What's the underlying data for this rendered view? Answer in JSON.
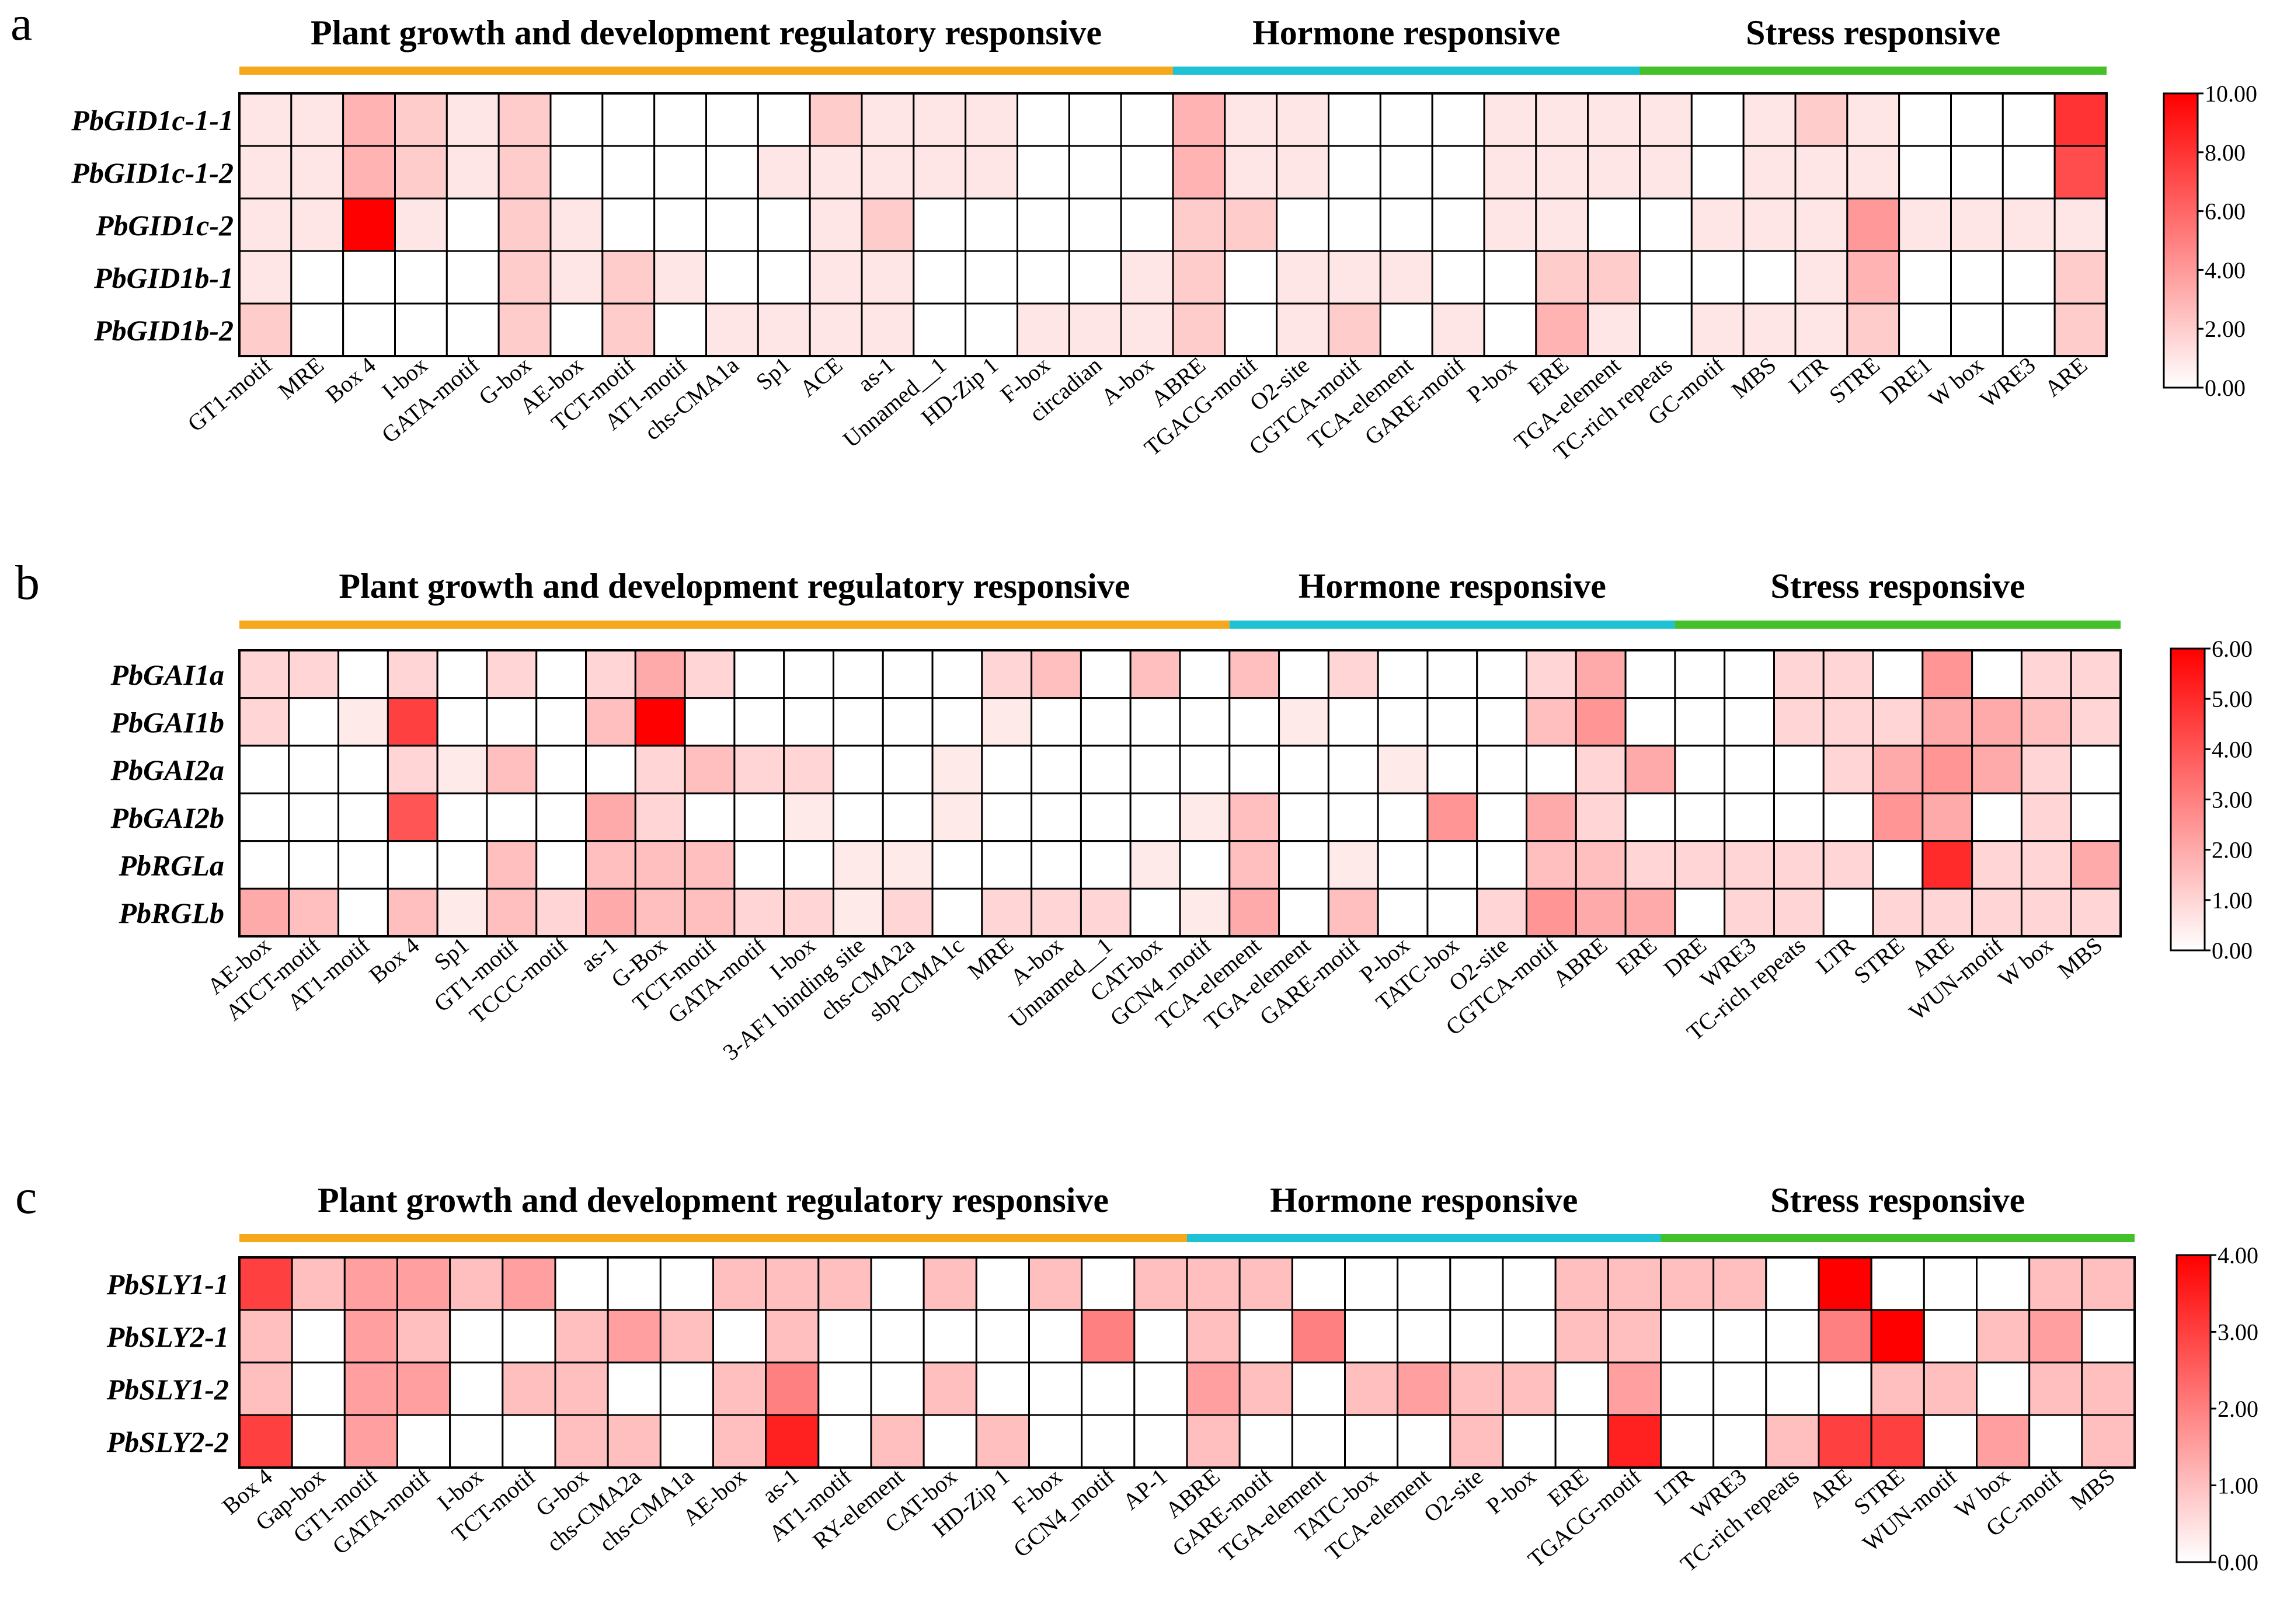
{
  "chart_data": [
    {
      "type": "heatmap",
      "panel": "a",
      "groups": [
        {
          "label": "Plant growth and development regulatory responsive",
          "color": "#f5a81c",
          "start": 0,
          "end": 18
        },
        {
          "label": "Hormone responsive",
          "color": "#1fc1d4",
          "start": 18,
          "end": 27
        },
        {
          "label": "Stress responsive",
          "color": "#44c02a",
          "start": 27,
          "end": 36
        }
      ],
      "rows": [
        "PbGID1c-1-1",
        "PbGID1c-1-2",
        "PbGID1c-2",
        "PbGID1b-1",
        "PbGID1b-2"
      ],
      "columns": [
        "GT1-motif",
        "MRE",
        "Box 4",
        "I-box",
        "GATA-motif",
        "G-box",
        "AE-box",
        "TCT-motif",
        "AT1-motif",
        "chs-CMA1a",
        "Sp1",
        "ACE",
        "as-1",
        "Unnamed__1",
        "HD-Zip 1",
        "F-box",
        "circadian",
        "A-box",
        "ABRE",
        "TGACG-motif",
        "O2-site",
        "CGTCA-motif",
        "TCA-element",
        "GARE-motif",
        "P-box",
        "ERE",
        "TGA-element",
        "TC-rich repeats",
        "GC-motif",
        "MBS",
        "LTR",
        "STRE",
        "DRE1",
        "W box",
        "WRE3",
        "ARE"
      ],
      "values": [
        [
          1,
          1,
          3,
          2,
          1,
          2,
          0,
          0,
          0,
          0,
          0,
          2,
          1,
          1,
          1,
          0,
          0,
          0,
          3,
          1,
          1,
          0,
          0,
          0,
          1,
          1,
          1,
          1,
          0,
          1,
          2,
          1,
          0,
          0,
          0,
          8
        ],
        [
          1,
          1,
          3,
          2,
          1,
          2,
          0,
          0,
          0,
          0,
          1,
          1,
          1,
          1,
          1,
          0,
          0,
          0,
          3,
          1,
          1,
          0,
          0,
          0,
          1,
          1,
          1,
          1,
          0,
          1,
          1,
          1,
          0,
          0,
          0,
          7
        ],
        [
          1,
          1,
          10,
          1,
          0,
          2,
          1,
          0,
          0,
          0,
          0,
          1,
          2,
          0,
          0,
          0,
          0,
          0,
          2,
          2,
          0,
          0,
          0,
          0,
          1,
          1,
          0,
          0,
          1,
          1,
          1,
          4,
          1,
          1,
          1,
          1
        ],
        [
          1,
          0,
          0,
          0,
          0,
          2,
          1,
          2,
          1,
          0,
          0,
          1,
          1,
          0,
          0,
          0,
          0,
          1,
          2,
          0,
          1,
          1,
          1,
          0,
          0,
          2,
          2,
          0,
          0,
          0,
          1,
          3,
          0,
          0,
          0,
          2
        ],
        [
          2,
          0,
          0,
          0,
          0,
          2,
          0,
          2,
          0,
          1,
          1,
          1,
          1,
          0,
          0,
          1,
          1,
          1,
          2,
          0,
          1,
          2,
          0,
          1,
          0,
          3,
          1,
          0,
          1,
          1,
          1,
          2,
          0,
          0,
          0,
          2
        ]
      ],
      "zlim": [
        0,
        10
      ],
      "colorbar_ticks": [
        "10.00",
        "8.00",
        "6.00",
        "4.00",
        "2.00",
        "0.00"
      ]
    },
    {
      "type": "heatmap",
      "panel": "b",
      "groups": [
        {
          "label": "Plant growth and development regulatory responsive",
          "color": "#f5a81c",
          "start": 0,
          "end": 20
        },
        {
          "label": "Hormone responsive",
          "color": "#1fc1d4",
          "start": 20,
          "end": 29
        },
        {
          "label": "Stress responsive",
          "color": "#44c02a",
          "start": 29,
          "end": 38
        }
      ],
      "rows": [
        "PbGAI1a",
        "PbGAI1b",
        "PbGAI2a",
        "PbGAI2b",
        "PbRGLa",
        "PbRGLb"
      ],
      "columns": [
        "AE-box",
        "ATCT-motif",
        "AT1-motif",
        "Box 4",
        "Sp1",
        "GT1-motif",
        "TCCC-motif",
        "as-1",
        "G-Box",
        "TCT-motif",
        "GATA-motif",
        "I-box",
        "3-AF1 binding site",
        "chs-CMA2a",
        "sbp-CMA1c",
        "MRE",
        "A-box",
        "Unnamed__1",
        "CAT-box",
        "GCN4_motif",
        "TCA-element",
        "TGA-element",
        "GARE-motif",
        "P-box",
        "TATC-box",
        "O2-site",
        "CGTCA-motif",
        "ABRE",
        "ERE",
        "DRE",
        "WRE3",
        "TC-rich repeats",
        "LTR",
        "STRE",
        "ARE",
        "WUN-motif",
        "W box",
        "MBS"
      ],
      "values": [
        [
          1,
          1,
          0,
          1,
          0,
          1,
          0,
          1,
          2,
          1,
          0,
          0,
          0,
          0,
          0,
          1,
          1.5,
          0,
          1.5,
          0,
          1.5,
          0,
          1,
          0,
          0,
          0,
          1,
          2,
          0,
          0,
          0,
          1,
          1,
          0,
          2.5,
          0,
          1,
          1
        ],
        [
          1,
          0,
          0.5,
          4.5,
          0,
          0,
          0,
          1.5,
          6,
          0,
          0,
          0,
          0,
          0,
          0,
          0.5,
          0,
          0,
          0,
          0,
          0,
          0.5,
          0,
          0,
          0,
          0,
          1.5,
          2.5,
          0,
          0,
          0,
          1,
          1,
          1,
          2,
          2,
          1.5,
          1
        ],
        [
          0,
          0,
          0,
          1,
          0.5,
          1.5,
          0,
          0,
          1,
          1.5,
          1,
          1,
          0,
          0,
          0.5,
          0,
          0,
          0,
          0,
          0,
          0,
          0,
          0,
          0.5,
          0,
          0,
          0,
          1,
          2,
          0,
          0,
          0,
          1,
          2,
          2.5,
          2,
          1,
          0
        ],
        [
          0,
          0,
          0,
          4,
          0,
          0,
          0,
          2,
          1,
          0,
          0,
          0.5,
          0,
          0,
          0.5,
          0,
          0,
          0,
          0,
          0.5,
          1.5,
          0,
          0,
          0,
          2.5,
          0,
          2,
          1,
          0,
          0,
          0,
          0,
          0,
          2.5,
          2,
          0,
          1,
          0
        ],
        [
          0,
          0,
          0,
          0,
          0,
          1.5,
          0,
          1.5,
          1.5,
          1.5,
          0,
          0,
          0.5,
          0.5,
          0,
          0,
          0,
          0,
          0.5,
          0,
          1.5,
          0,
          0.5,
          0,
          0,
          0,
          1.5,
          1.5,
          1,
          1,
          1,
          1,
          1,
          0,
          5,
          1,
          1,
          2
        ],
        [
          2,
          1.5,
          0,
          1.5,
          0.5,
          1.5,
          1,
          2,
          1.5,
          1.5,
          1,
          1,
          0.5,
          1,
          0,
          1,
          1,
          1,
          0,
          0.5,
          2,
          0,
          1.5,
          0,
          0,
          1,
          2.5,
          2,
          2,
          0,
          1,
          1,
          0,
          1,
          1,
          1,
          1,
          1
        ]
      ],
      "zlim": [
        0,
        6
      ],
      "colorbar_ticks": [
        "6.00",
        "5.00",
        "4.00",
        "3.00",
        "2.00",
        "1.00",
        "0.00"
      ]
    },
    {
      "type": "heatmap",
      "panel": "c",
      "groups": [
        {
          "label": "Plant growth and development regulatory responsive",
          "color": "#f5a81c",
          "start": 0,
          "end": 18
        },
        {
          "label": "Hormone responsive",
          "color": "#1fc1d4",
          "start": 18,
          "end": 27
        },
        {
          "label": "Stress responsive",
          "color": "#44c02a",
          "start": 27,
          "end": 36
        }
      ],
      "rows": [
        "PbSLY1-1",
        "PbSLY2-1",
        "PbSLY1-2",
        "PbSLY2-2"
      ],
      "columns": [
        "Box 4",
        "Gap-box",
        "GT1-motif",
        "GATA-motif",
        "I-box",
        "TCT-motif",
        "G-box",
        "chs-CMA2a",
        "chs-CMA1a",
        "AE-box",
        "as-1",
        "AT1-motif",
        "RY-element",
        "CAT-box",
        "HD-Zip 1",
        "F-box",
        "GCN4_motif",
        "AP-1",
        "ABRE",
        "GARE-motif",
        "TGA-element",
        "TATC-box",
        "TCA-element",
        "O2-site",
        "P-box",
        "ERE",
        "TGACG-motif",
        "LTR",
        "WRE3",
        "TC-rich repeats",
        "ARE",
        "STRE",
        "WUN-motif",
        "W box",
        "GC-motif",
        "MBS"
      ],
      "values": [
        [
          3,
          1,
          1.5,
          1.5,
          1,
          1.5,
          0,
          0,
          0,
          1,
          1,
          1,
          0,
          1,
          0,
          1,
          0,
          1,
          1,
          1,
          0,
          0,
          0,
          0,
          0,
          1,
          1,
          1,
          1,
          0,
          4,
          0,
          0,
          0,
          1,
          1
        ],
        [
          1,
          0,
          1.5,
          1,
          0,
          0,
          1,
          1.5,
          1,
          0,
          1,
          0,
          0,
          0,
          0,
          0,
          2,
          0,
          1,
          0,
          2,
          0,
          0,
          0,
          0,
          1,
          1,
          0,
          0,
          0,
          2,
          4,
          0,
          1,
          1.5,
          0
        ],
        [
          1,
          0,
          1.5,
          1.5,
          0,
          1,
          1,
          0,
          0,
          1,
          2,
          0,
          0,
          1,
          0,
          0,
          0,
          0,
          1.5,
          1,
          0,
          1,
          1.5,
          1,
          1,
          0,
          1.5,
          0,
          0,
          0,
          0,
          1,
          1,
          0,
          1,
          1
        ],
        [
          3,
          0,
          1.5,
          0,
          0,
          0,
          1,
          1,
          0,
          1,
          3.5,
          0,
          1,
          0,
          1,
          0,
          0,
          0,
          1,
          0,
          0,
          0,
          0,
          1,
          0,
          0,
          3.5,
          0,
          0,
          1,
          3,
          3,
          0,
          1.5,
          0,
          1
        ]
      ],
      "zlim": [
        0,
        4
      ],
      "colorbar_ticks": [
        "4.00",
        "3.00",
        "2.00",
        "1.00",
        "0.00"
      ]
    }
  ]
}
